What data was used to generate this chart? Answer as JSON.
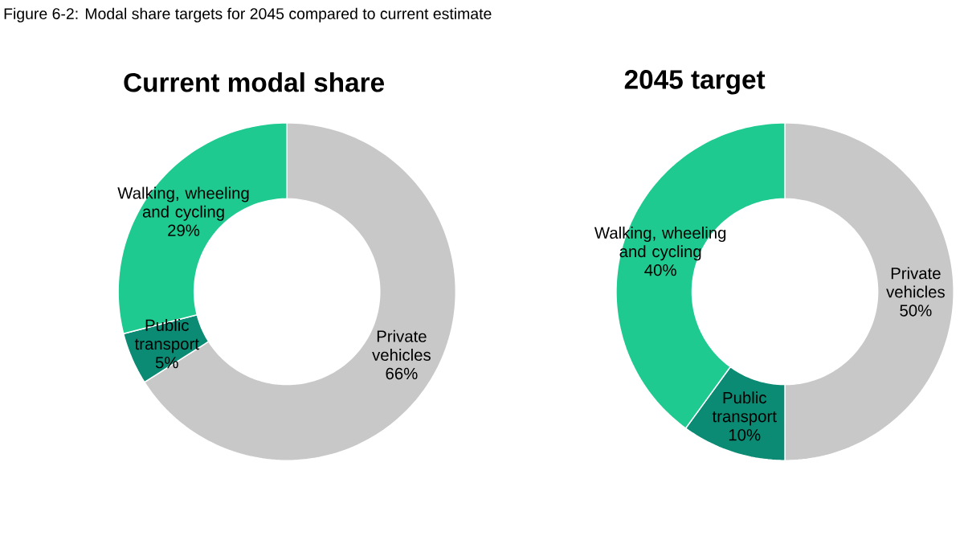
{
  "chart_data": [
    {
      "type": "donut",
      "title": "Current modal share",
      "annotations": [
        "Figure 6-2: Modal share targets for 2045 compared to current estimate"
      ],
      "categories": [
        "Private vehicles",
        "Public transport",
        "Walking, wheeling and cycling"
      ],
      "values": [
        66,
        5,
        29
      ],
      "value_labels": [
        "66%",
        "5%",
        "29%"
      ],
      "colors": [
        "#c8c8c8",
        "#0b8a74",
        "#1fca91"
      ]
    },
    {
      "type": "donut",
      "title": "2045 target",
      "categories": [
        "Private vehicles",
        "Public transport",
        "Walking, wheeling and cycling"
      ],
      "values": [
        50,
        10,
        40
      ],
      "value_labels": [
        "50%",
        "10%",
        "40%"
      ],
      "colors": [
        "#c8c8c8",
        "#0b8a74",
        "#1fca91"
      ]
    }
  ]
}
